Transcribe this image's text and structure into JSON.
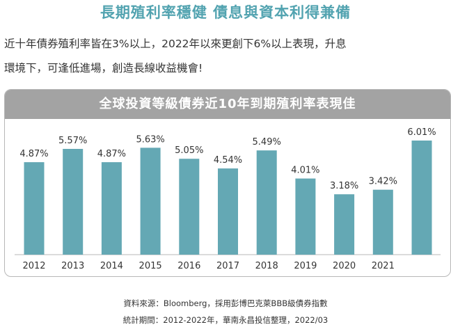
{
  "headline": "長期殖利率穩健 債息與資本利得兼備",
  "intro_line1": "近十年債券殖利率皆在3%以上，2022年以來更創下6%以上表現，升息",
  "intro_line2": "環境下，可逢低進場，創造長線收益機會!",
  "colors": {
    "headline": "#52a3b0",
    "bar": "#64a8b4",
    "header": "#a3a3a3"
  },
  "chart_data": {
    "type": "bar",
    "title": "全球投資等級債券近10年到期殖利率表現佳",
    "categories": [
      "2012",
      "2013",
      "2014",
      "2015",
      "2016",
      "2017",
      "2018",
      "2019",
      "2020",
      "2021",
      ""
    ],
    "values": [
      4.87,
      5.57,
      4.87,
      5.63,
      5.05,
      4.54,
      5.49,
      4.01,
      3.18,
      3.42,
      6.01
    ],
    "labels": [
      "4.87%",
      "5.57%",
      "4.87%",
      "5.63%",
      "5.05%",
      "4.54%",
      "5.49%",
      "4.01%",
      "3.18%",
      "3.42%",
      "6.01%"
    ],
    "ylim": [
      0,
      6.01
    ],
    "grid": false,
    "legend": "none"
  },
  "source_line1": "資料來源：Bloomberg，採用彭博巴克萊BBB級債券指數",
  "source_line2": "統計期間：2012-2022年，華南永昌投信整理，2022/03"
}
